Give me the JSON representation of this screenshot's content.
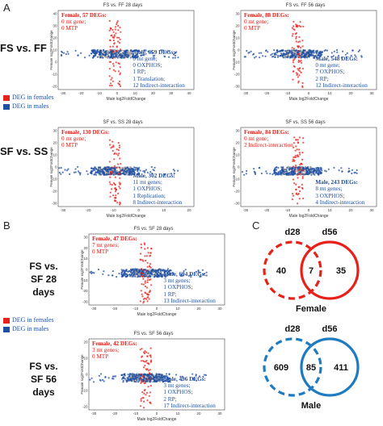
{
  "panels": {
    "A": "A",
    "B": "B",
    "C": "C"
  },
  "rows": {
    "fs_ff": "FS vs. FF",
    "sf_ss": "SF vs. SS",
    "fs_sf_28": "FS vs. SF 28 days",
    "fs_sf_56": "FS vs. SF 56 days"
  },
  "axis": {
    "x": "Male log2FoldChange",
    "y": "Female log2FoldChange"
  },
  "plots": [
    {
      "title": "FS vs. FF 28 days",
      "female": [
        "Female, 57 DEGs:",
        "0 mt gene;",
        "0 MTP"
      ],
      "male": [
        "Male, 659 DEGs:",
        "0 mt gene;",
        "0 OXPHOS;",
        "1 RP;",
        "1 Translation;",
        "12 Indirect-interaction"
      ],
      "xticks": [
        "-30",
        "-20",
        "-10",
        "0",
        "10",
        "20",
        "30",
        "40"
      ],
      "yticks": [
        "40",
        "30",
        "20",
        "10",
        "0",
        "-10",
        "-20"
      ]
    },
    {
      "title": "FS vs. FF 56 days",
      "female": [
        "Female, 88 DEGs:",
        "0 mt gene;",
        "0 MTP"
      ],
      "male": [
        "Male, 548 DEGs:",
        "0 mt gene;",
        "7 OXPHOS;",
        "2 RP;",
        "12 Indirect-interaction"
      ],
      "xticks": [
        "-30",
        "-20",
        "-10",
        "0",
        "10",
        "20",
        "30"
      ],
      "yticks": [
        "30",
        "20",
        "10",
        "0",
        "-10",
        "-20",
        "-30"
      ]
    },
    {
      "title": "SF vs. SS 28 days",
      "female": [
        "Female, 130 DEGs:",
        "0 mt gene;",
        "0 MTP"
      ],
      "male": [
        "Male, 302 DEGs:",
        "11 mt genes;",
        "1 OXPHOS;",
        "1 Replication;",
        "8 Indirect-interaction"
      ],
      "xticks": [
        "-30",
        "-20",
        "-10",
        "0",
        "10",
        "20"
      ],
      "yticks": [
        "30",
        "20",
        "10",
        "0",
        "-10",
        "-20",
        "-30"
      ]
    },
    {
      "title": "SF vs. SS 56 days",
      "female": [
        "Female, 84 DEGs:",
        "0 mt gene;",
        "2 Indirect-interaction"
      ],
      "male": [
        "Male, 243 DEGs:",
        "8 mt genes;",
        "3 OXPHOS;",
        "4 Indirect-interaction"
      ],
      "xticks": [
        "-30",
        "-20",
        "-10",
        "0",
        "10",
        "20",
        "30"
      ],
      "yticks": [
        "30",
        "20",
        "10",
        "0",
        "-10",
        "-20",
        "-30"
      ]
    },
    {
      "title": "FS vs. SF 28 days",
      "female": [
        "Female, 47 DEGs:",
        "7 mt genes;",
        "0 MTP"
      ],
      "male": [
        "Male, 694 DEGs:",
        "3 mt genes;",
        "1 OXPHOS;",
        "1 RP;",
        "13 Indirect-interaction"
      ],
      "xticks": [
        "-30",
        "-20",
        "-10",
        "0",
        "10",
        "20",
        "30"
      ],
      "yticks": [
        "30",
        "20",
        "10",
        "0",
        "-10",
        "-20",
        "-30"
      ]
    },
    {
      "title": "FS vs. SF 56 days",
      "female": [
        "Female, 42 DEGs:",
        "3 mt genes;",
        "0 MTP"
      ],
      "male": [
        "Male, 496 DEGs:",
        "3 mt genes;",
        "1 OXPHOS;",
        "2 RP;",
        "17 Indirect-interaction"
      ],
      "xticks": [
        "-30",
        "-20",
        "-10",
        "0",
        "10",
        "20",
        "30"
      ],
      "yticks": [
        "20",
        "10",
        "0",
        "-10",
        "-20"
      ]
    }
  ],
  "legend": {
    "female": "DEG in females",
    "male": "DEG in males"
  },
  "venn": [
    {
      "left": "d28",
      "right": "d56",
      "only_left": "40",
      "both": "7",
      "only_right": "35",
      "label": "Female",
      "color": "#e8201a"
    },
    {
      "left": "d28",
      "right": "d56",
      "only_left": "609",
      "both": "85",
      "only_right": "411",
      "label": "Male",
      "color": "#1f7bc0"
    }
  ],
  "colors": {
    "female": "#e8201a",
    "male": "#1f4fa3",
    "neutral": "#9a9a9a"
  }
}
